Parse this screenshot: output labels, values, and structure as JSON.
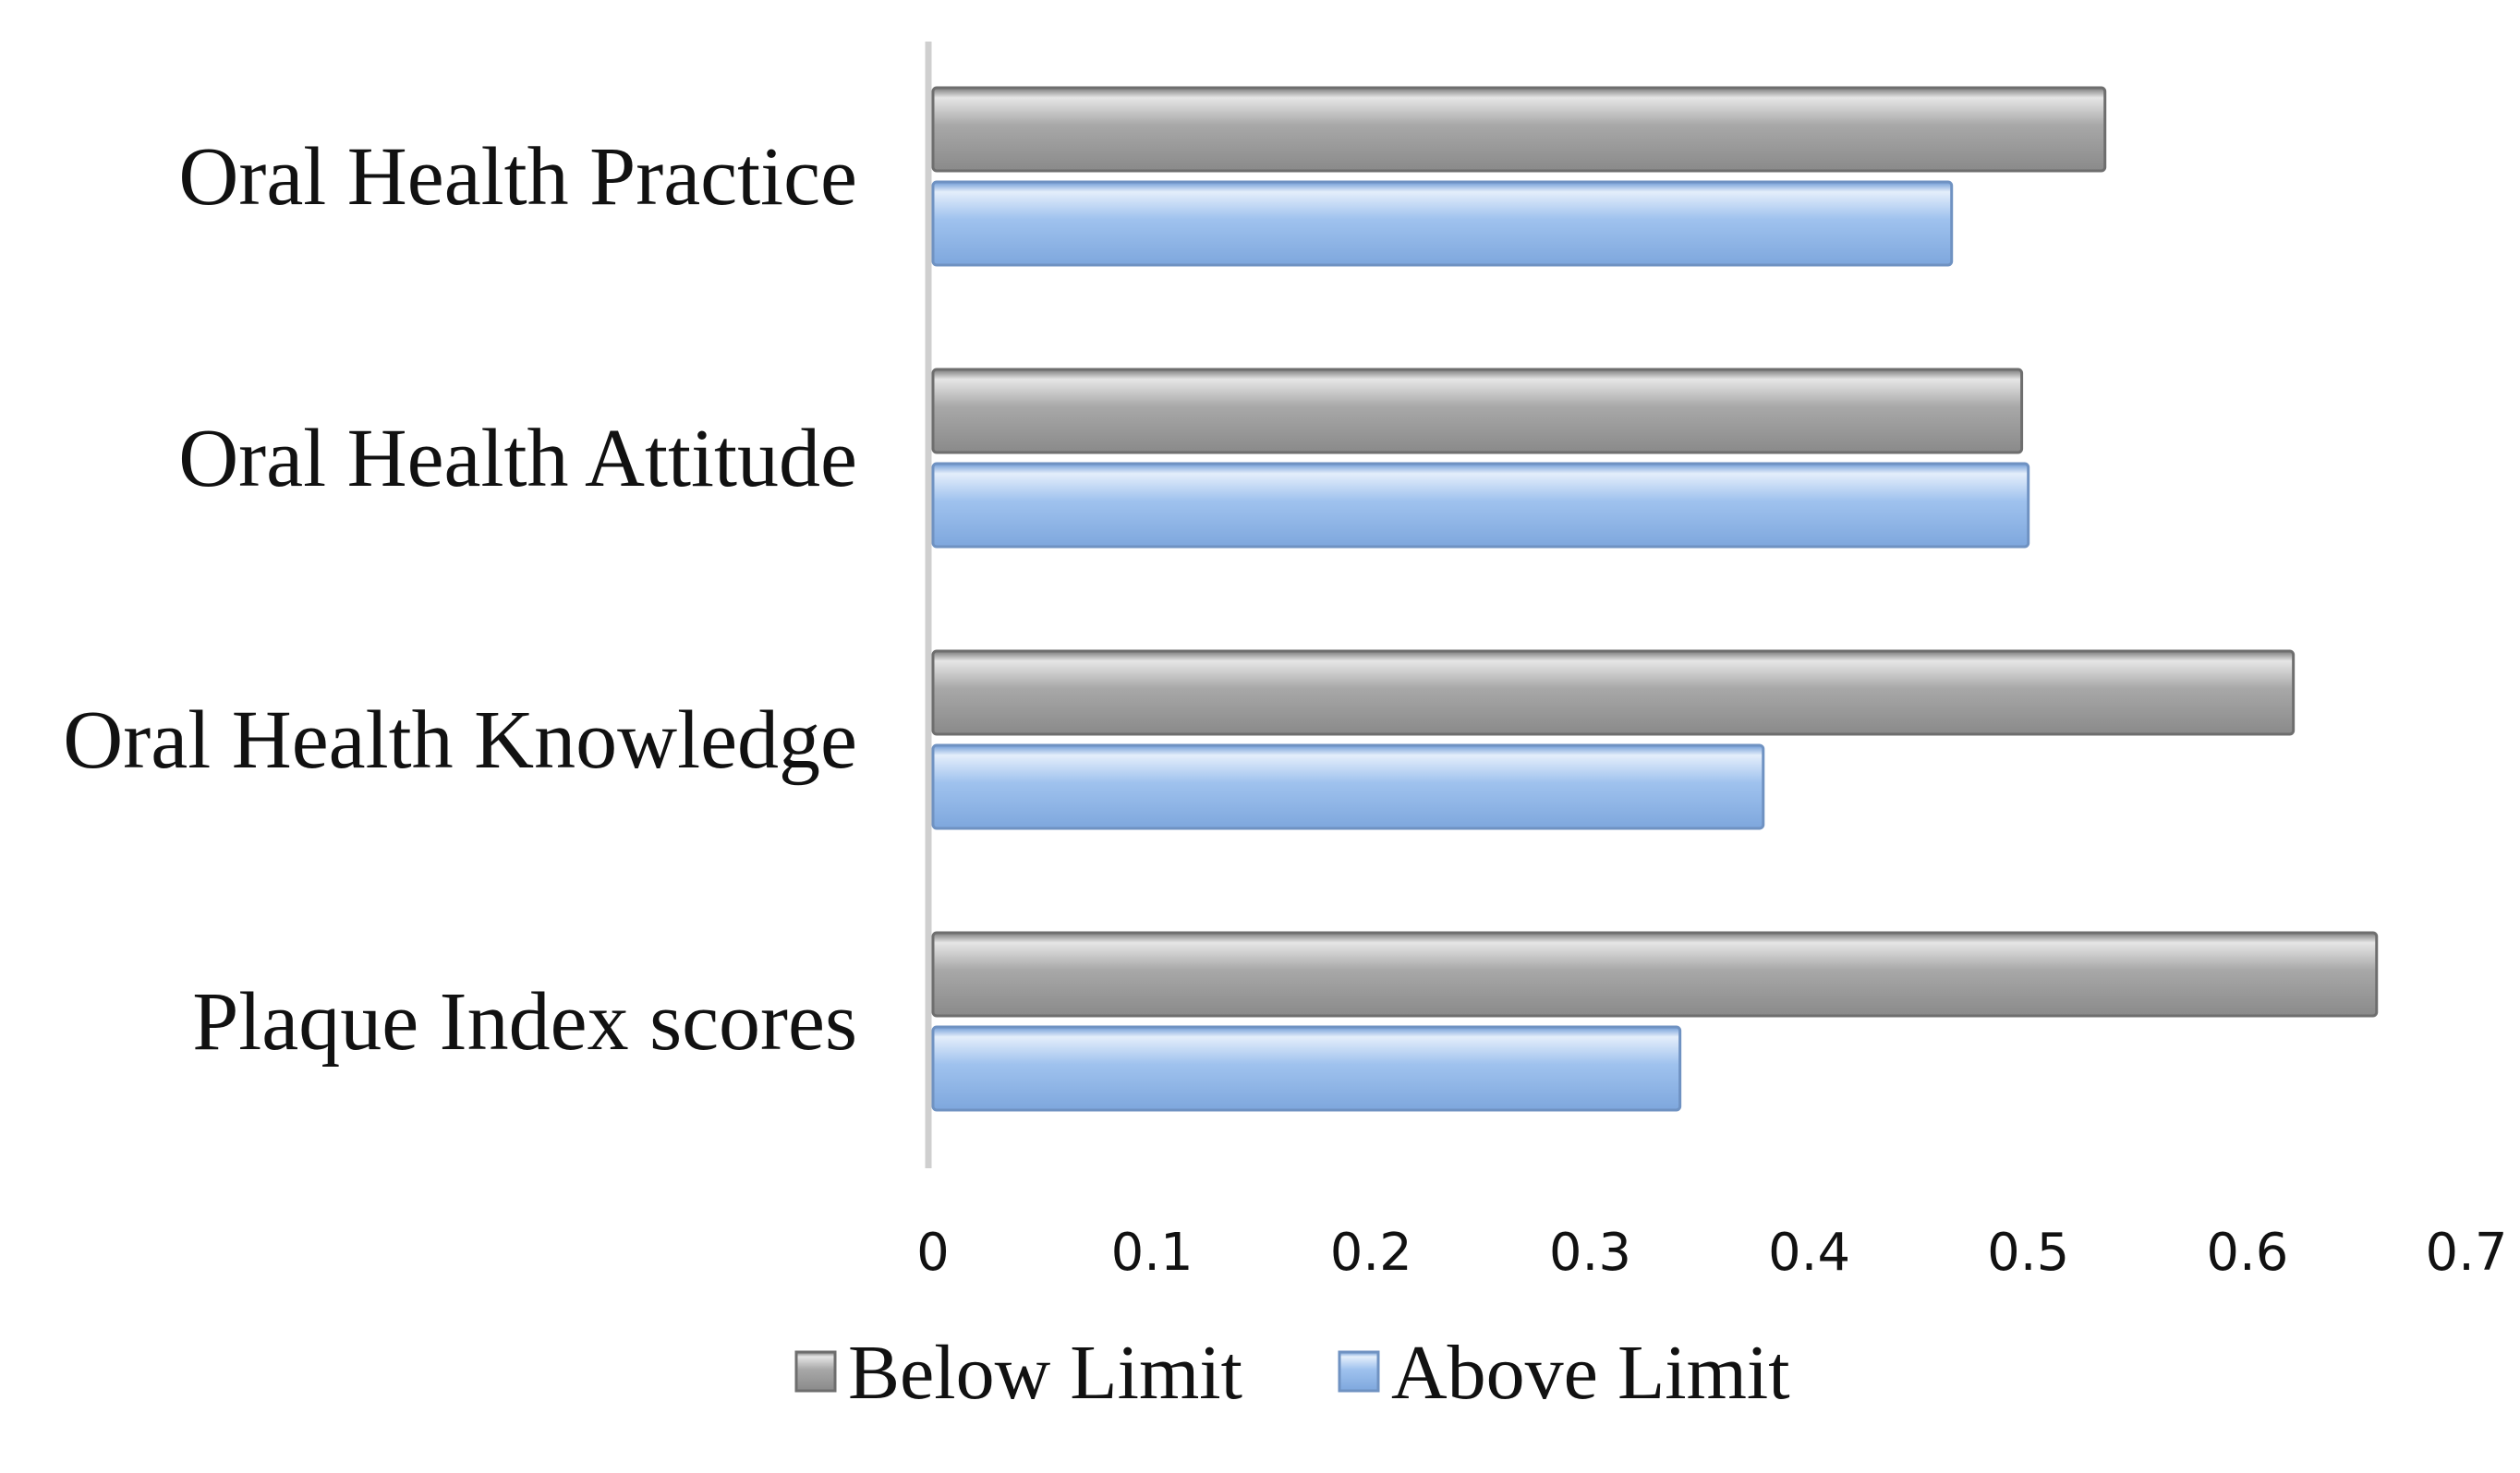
{
  "chart_data": {
    "type": "bar",
    "orientation": "horizontal",
    "categories": [
      "Oral Health Practice",
      "Oral Health Attitude",
      "Oral Health Knowledge",
      "Plaque Index scores"
    ],
    "series": [
      {
        "name": "Below Limit",
        "color": "#9a9a9a",
        "values": [
          0.535,
          0.497,
          0.621,
          0.659
        ]
      },
      {
        "name": "Above Limit",
        "color": "#8db4e8",
        "values": [
          0.465,
          0.5,
          0.379,
          0.341
        ]
      }
    ],
    "xlim": [
      0,
      0.7
    ],
    "xticks": [
      "0",
      "0.1",
      "0.2",
      "0.3",
      "0.4",
      "0.5",
      "0.6",
      "0.7"
    ],
    "grid": false,
    "legend_position": "bottom"
  }
}
